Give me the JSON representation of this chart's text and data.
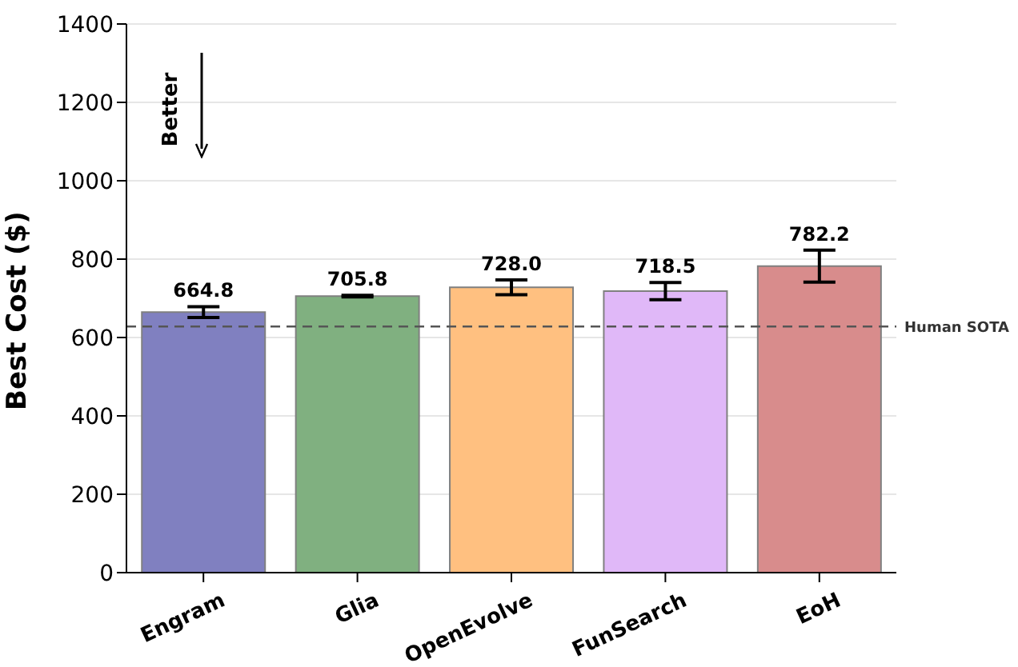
{
  "chart_data": {
    "type": "bar",
    "ylabel": "Best Cost ($)",
    "categories": [
      "Engram",
      "Glia",
      "OpenEvolve",
      "FunSearch",
      "EoH"
    ],
    "values": [
      664.8,
      705.8,
      728.0,
      718.5,
      782.2
    ],
    "colors": [
      "#8080c0",
      "#80b080",
      "#ffc080",
      "#e0b8f8",
      "#d88c8c"
    ],
    "errors": [
      14,
      2,
      19,
      22,
      41
    ],
    "ylim": [
      0,
      1400
    ],
    "yticks": [
      0,
      200,
      400,
      600,
      800,
      1000,
      1200,
      1400
    ],
    "grid": "y",
    "value_labels": [
      "664.8",
      "705.8",
      "728.0",
      "718.5",
      "782.2"
    ],
    "ref_lines": [
      {
        "axis": "y",
        "value": 628,
        "label": "Human SOTA",
        "color": "#555555",
        "line_style": "dashed"
      }
    ],
    "annotations": [
      "Better"
    ]
  }
}
